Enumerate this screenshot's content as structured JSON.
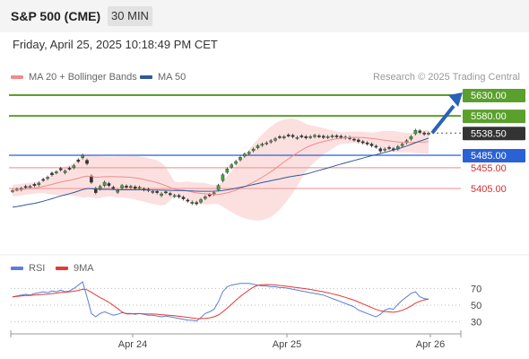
{
  "header": {
    "title": "S&P 500 (CME)",
    "timeframe": "30 MIN"
  },
  "datetime": "Friday, April 25, 2025 10:18:49 PM CET",
  "legend": {
    "bb": {
      "label": "MA 20 + Bollinger Bands",
      "color": "#f28b8b"
    },
    "ma50": {
      "label": "MA 50",
      "color": "#2d5b9a"
    },
    "rsi": {
      "label": "RSI",
      "color": "#5b7fd6"
    },
    "ma9": {
      "label": "9MA",
      "color": "#e53935"
    }
  },
  "credit": "Research © 2025 Trading Central",
  "chart_data": {
    "type": "candlestick",
    "price_ylim": [
      5315,
      5640
    ],
    "levels": [
      {
        "value": 5630,
        "label": "5630.00",
        "kind": "resistance"
      },
      {
        "value": 5580,
        "label": "5580.00",
        "kind": "resistance"
      },
      {
        "value": 5538.5,
        "label": "5538.50",
        "kind": "last"
      },
      {
        "value": 5485,
        "label": "5485.00",
        "kind": "pivot"
      },
      {
        "value": 5455,
        "label": "5455.00",
        "kind": "support"
      },
      {
        "value": 5405,
        "label": "5405.00",
        "kind": "support"
      }
    ],
    "x_ticks": [
      "Apr 24",
      "Apr 25",
      "Apr 26"
    ],
    "rsi_ticks": [
      70,
      50,
      30
    ],
    "rsi_ylim": [
      20,
      80
    ],
    "close": [
      5400,
      5402,
      5405,
      5408,
      5410,
      5412,
      5418,
      5425,
      5432,
      5438,
      5445,
      5450,
      5447,
      5452,
      5460,
      5470,
      5485,
      5465,
      5420,
      5395,
      5410,
      5420,
      5412,
      5405,
      5400,
      5412,
      5408,
      5410,
      5405,
      5408,
      5402,
      5400,
      5398,
      5395,
      5392,
      5395,
      5390,
      5388,
      5385,
      5380,
      5375,
      5372,
      5368,
      5378,
      5385,
      5388,
      5395,
      5412,
      5438,
      5452,
      5462,
      5470,
      5480,
      5488,
      5492,
      5500,
      5508,
      5512,
      5515,
      5520,
      5525,
      5528,
      5530,
      5532,
      5530,
      5528,
      5530,
      5527,
      5530,
      5533,
      5530,
      5528,
      5530,
      5532,
      5530,
      5528,
      5527,
      5525,
      5522,
      5518,
      5515,
      5512,
      5508,
      5505,
      5495,
      5500,
      5502,
      5498,
      5506,
      5512,
      5520,
      5530,
      5545,
      5540,
      5536,
      5538.5
    ],
    "open_offsets": [
      -2,
      1,
      -3,
      2,
      -2,
      3,
      -4,
      2,
      -3,
      4,
      -2,
      3,
      -4,
      2,
      -5,
      4,
      -6,
      8,
      15,
      10,
      -6,
      -8,
      5,
      3,
      -4,
      -6,
      3,
      -2,
      4,
      -3,
      2,
      3,
      -2,
      3,
      -4,
      2,
      3,
      -2,
      3,
      4,
      2,
      -3,
      3,
      -6,
      -4,
      2,
      -4,
      -10,
      -14,
      -8,
      -6,
      -5,
      -6,
      -5,
      -3,
      -4,
      -5,
      -3,
      -2,
      -3,
      -4,
      2,
      -3,
      2,
      3,
      -2,
      2,
      3,
      -2,
      -3,
      2,
      3,
      -2,
      -2,
      2,
      3,
      2,
      3,
      2,
      4,
      3,
      3,
      4,
      2,
      6,
      -3,
      2,
      3,
      -6,
      -4,
      -5,
      -6,
      -8,
      4,
      3,
      -2
    ],
    "rsi": [
      60,
      61,
      62,
      63,
      62,
      64,
      65,
      66,
      65,
      67,
      66,
      68,
      66,
      67,
      70,
      74,
      78,
      60,
      40,
      36,
      40,
      42,
      40,
      38,
      39,
      41,
      40,
      40,
      39,
      40,
      39,
      38,
      38,
      37,
      36,
      37,
      36,
      35,
      34,
      33,
      32,
      32,
      31,
      35,
      40,
      42,
      45,
      54,
      66,
      72,
      74,
      75,
      76,
      76,
      76,
      75,
      74,
      73,
      73,
      72,
      72,
      71,
      71,
      70,
      69,
      68,
      67,
      66,
      65,
      64,
      63,
      62,
      60,
      58,
      56,
      54,
      52,
      50,
      48,
      44,
      42,
      40,
      38,
      36,
      39,
      44,
      46,
      45,
      51,
      56,
      60,
      64,
      66,
      60,
      58,
      57
    ]
  }
}
